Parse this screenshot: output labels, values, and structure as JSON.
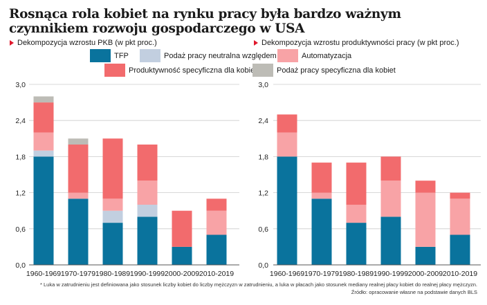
{
  "title": "Rosnąca rola kobiet na rynku pracy była bardzo ważnym czynnikiem rozwoju gospodarczego w USA",
  "footnote": "* Luka w zatrudnieniu jest definiowana jako stosunek liczby kobiet do liczby mężczyzn w zatrudnieniu, a luka w płacach jako stosunek mediany realnej płacy kobiet do realnej płacy mężczyzn.",
  "source": "Źródło: opracowanie własne na podstawie danych BLS",
  "colors": {
    "accent": "#e0182d",
    "axis": "#555555",
    "grid": "#cccccc"
  },
  "legend": [
    {
      "label": "TFP",
      "color": "#0a739d"
    },
    {
      "label": "Podaż pracy neutralna względem płci",
      "color": "#c2cfe0"
    },
    {
      "label": "Automatyzacja",
      "color": "#f8a3a6"
    },
    {
      "label": "Produktywność specyficzna dla kobiet",
      "color": "#f26b6d"
    },
    {
      "label": "Podaż pracy specyficzna dla kobiet",
      "color": "#bdbcb6"
    }
  ],
  "chart_data": [
    {
      "type": "bar",
      "stacked": true,
      "title": "Dekompozycja wzrostu PKB (w pkt proc.)",
      "categories": [
        "1960-1969",
        "1970-1979",
        "1980-1989",
        "1990-1999",
        "2000-2009",
        "2010-2019"
      ],
      "ylim": [
        0,
        3.0
      ],
      "yticks": [
        "0,0",
        "0,6",
        "1,2",
        "1,8",
        "2,4",
        "3,0"
      ],
      "grid": true,
      "series": [
        {
          "name": "TFP",
          "values": [
            1.8,
            1.1,
            0.7,
            0.8,
            0.3,
            0.5
          ]
        },
        {
          "name": "Podaż pracy neutralna względem płci",
          "values": [
            0.1,
            0.0,
            0.2,
            0.2,
            0.0,
            0.0
          ]
        },
        {
          "name": "Automatyzacja",
          "values": [
            0.3,
            0.1,
            0.2,
            0.4,
            0.0,
            0.4
          ]
        },
        {
          "name": "Produktywność specyficzna dla kobiet",
          "values": [
            0.5,
            0.8,
            1.0,
            0.6,
            0.6,
            0.2
          ]
        },
        {
          "name": "Podaż pracy specyficzna dla kobiet",
          "values": [
            0.1,
            0.1,
            0.0,
            0.0,
            0.0,
            0.0
          ]
        }
      ]
    },
    {
      "type": "bar",
      "stacked": true,
      "title": "Dekompozycja wzrostu produktywności pracy (w pkt proc.)",
      "categories": [
        "1960-1969",
        "1970-1979",
        "1980-1989",
        "1990-1999",
        "2000-2009",
        "2010-2019"
      ],
      "ylim": [
        0,
        3.0
      ],
      "yticks": [
        "0,0",
        "0,6",
        "1,2",
        "1,8",
        "2,4",
        "3,0"
      ],
      "grid": true,
      "series": [
        {
          "name": "TFP",
          "values": [
            1.8,
            1.1,
            0.7,
            0.8,
            0.3,
            0.5
          ]
        },
        {
          "name": "Podaż pracy neutralna względem płci",
          "values": [
            0.0,
            0.0,
            0.0,
            0.0,
            0.0,
            0.0
          ]
        },
        {
          "name": "Automatyzacja",
          "values": [
            0.4,
            0.1,
            0.3,
            0.6,
            0.9,
            0.6
          ]
        },
        {
          "name": "Produktywność specyficzna dla kobiet",
          "values": [
            0.3,
            0.5,
            0.7,
            0.4,
            0.2,
            0.1
          ]
        },
        {
          "name": "Podaż pracy specyficzna dla kobiet",
          "values": [
            0.0,
            0.0,
            0.0,
            0.0,
            0.0,
            0.0
          ]
        }
      ]
    }
  ]
}
